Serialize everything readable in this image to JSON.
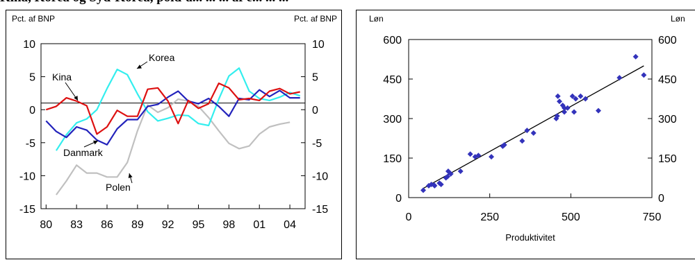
{
  "heading": "Kina, Korea og Syd-Korea, pold-a... ... ... af e... ... ...",
  "chart_data": [
    {
      "type": "line",
      "title": "",
      "left_axis_unit": "Pct. af BNP",
      "right_axis_unit": "Pct. af BNP",
      "xlabel": "",
      "ylabel": "Pct. af BNP",
      "xlim": [
        1979.5,
        2005.5
      ],
      "ylim": [
        -15,
        10
      ],
      "x_ticks": [
        1980,
        1983,
        1986,
        1989,
        1992,
        1995,
        1998,
        2001,
        2004
      ],
      "x_tick_labels": [
        "80",
        "83",
        "86",
        "89",
        "92",
        "95",
        "98",
        "01",
        "04"
      ],
      "y_ticks": [
        -15,
        -10,
        -5,
        0,
        5,
        10
      ],
      "y_tick_labels": [
        "-15",
        "-10",
        "-5",
        "0",
        "5",
        "10"
      ],
      "reference_line": 1,
      "series": [
        {
          "name": "Kina",
          "color": "#dd1111",
          "x": [
            1980,
            1981,
            1982,
            1983,
            1984,
            1985,
            1986,
            1987,
            1988,
            1989,
            1990,
            1991,
            1992,
            1993,
            1994,
            1995,
            1996,
            1997,
            1998,
            1999,
            2000,
            2001,
            2002,
            2003,
            2004,
            2005
          ],
          "values": [
            0,
            0.5,
            1.8,
            1.3,
            0.6,
            -3.7,
            -2.6,
            -0.1,
            -1,
            -1,
            3.1,
            3.3,
            1.3,
            -2.1,
            1.4,
            0.2,
            0.9,
            4,
            3.3,
            1.5,
            1.7,
            1.4,
            2.8,
            3.2,
            2.4,
            2.7
          ]
        },
        {
          "name": "Korea",
          "color": "#33eeee",
          "x": [
            1981,
            1982,
            1983,
            1984,
            1985,
            1986,
            1987,
            1988,
            1989,
            1990,
            1991,
            1992,
            1993,
            1994,
            1995,
            1996,
            1997,
            1998,
            1999,
            2000,
            2001,
            2002,
            2003,
            2004,
            2005
          ],
          "values": [
            -6.2,
            -3.8,
            -2,
            -1.4,
            0,
            3.2,
            6.1,
            5.3,
            2.4,
            -0.3,
            -1.7,
            -1.3,
            -0.8,
            -0.9,
            -2.1,
            -2.4,
            1.6,
            5.1,
            6.3,
            2.8,
            1.7,
            1.4,
            1.9,
            2.6,
            2.1
          ]
        },
        {
          "name": "Danmark",
          "color": "#2222bb",
          "x": [
            1980,
            1981,
            1982,
            1983,
            1984,
            1985,
            1986,
            1987,
            1988,
            1989,
            1990,
            1991,
            1992,
            1993,
            1994,
            1995,
            1996,
            1997,
            1998,
            1999,
            2000,
            2001,
            2002,
            2003,
            2004,
            2005
          ],
          "values": [
            -1.7,
            -3.3,
            -4.2,
            -2.6,
            -3.1,
            -4.6,
            -5.3,
            -2.9,
            -1.5,
            -1.5,
            0.5,
            0.8,
            1.9,
            2.8,
            1.3,
            0.9,
            1.7,
            0.5,
            -1,
            1.7,
            1.5,
            3,
            2,
            2.9,
            1.8,
            1.8
          ]
        },
        {
          "name": "Polen",
          "color": "#c0c0c0",
          "x": [
            1981,
            1982,
            1983,
            1984,
            1985,
            1986,
            1987,
            1988,
            1989,
            1990,
            1991,
            1992,
            1993,
            1994,
            1995,
            1996,
            1997,
            1998,
            1999,
            2000,
            2001,
            2002,
            2003,
            2004
          ],
          "values": [
            -12.9,
            -10.8,
            -8.4,
            -9.6,
            -9.6,
            -10.2,
            -10.2,
            -8,
            -3.2,
            0.7,
            -0.4,
            0.3,
            1.6,
            1.3,
            0.5,
            -1.2,
            -3.2,
            -5.1,
            -5.9,
            -5.5,
            -3.7,
            -2.6,
            -2.2,
            -1.9
          ]
        }
      ],
      "annotations": [
        "Kina",
        "Korea",
        "Danmark",
        "Polen"
      ]
    },
    {
      "type": "scatter",
      "title": "",
      "xlabel": "Produktivitet",
      "ylabel": "Løn",
      "left_axis_unit": "Løn",
      "right_axis_unit": "Løn",
      "xlim": [
        0,
        750
      ],
      "ylim": [
        0,
        600
      ],
      "x_ticks": [
        0,
        250,
        500,
        750
      ],
      "y_ticks": [
        0,
        150,
        300,
        450,
        600
      ],
      "marker_color": "#3333bb",
      "points": [
        [
          45,
          28
        ],
        [
          62,
          45
        ],
        [
          70,
          50
        ],
        [
          78,
          48
        ],
        [
          80,
          45
        ],
        [
          95,
          55
        ],
        [
          100,
          50
        ],
        [
          115,
          75
        ],
        [
          120,
          80
        ],
        [
          122,
          100
        ],
        [
          130,
          90
        ],
        [
          160,
          100
        ],
        [
          190,
          165
        ],
        [
          205,
          155
        ],
        [
          215,
          160
        ],
        [
          255,
          155
        ],
        [
          290,
          195
        ],
        [
          295,
          200
        ],
        [
          350,
          215
        ],
        [
          365,
          255
        ],
        [
          385,
          245
        ],
        [
          455,
          300
        ],
        [
          458,
          310
        ],
        [
          460,
          385
        ],
        [
          465,
          365
        ],
        [
          475,
          350
        ],
        [
          480,
          340
        ],
        [
          480,
          325
        ],
        [
          490,
          340
        ],
        [
          505,
          385
        ],
        [
          510,
          325
        ],
        [
          515,
          375
        ],
        [
          530,
          385
        ],
        [
          545,
          375
        ],
        [
          585,
          330
        ],
        [
          650,
          455
        ],
        [
          700,
          535
        ],
        [
          725,
          465
        ]
      ],
      "trendline": {
        "x": [
          45,
          725
        ],
        "y": [
          35,
          500
        ]
      }
    }
  ]
}
